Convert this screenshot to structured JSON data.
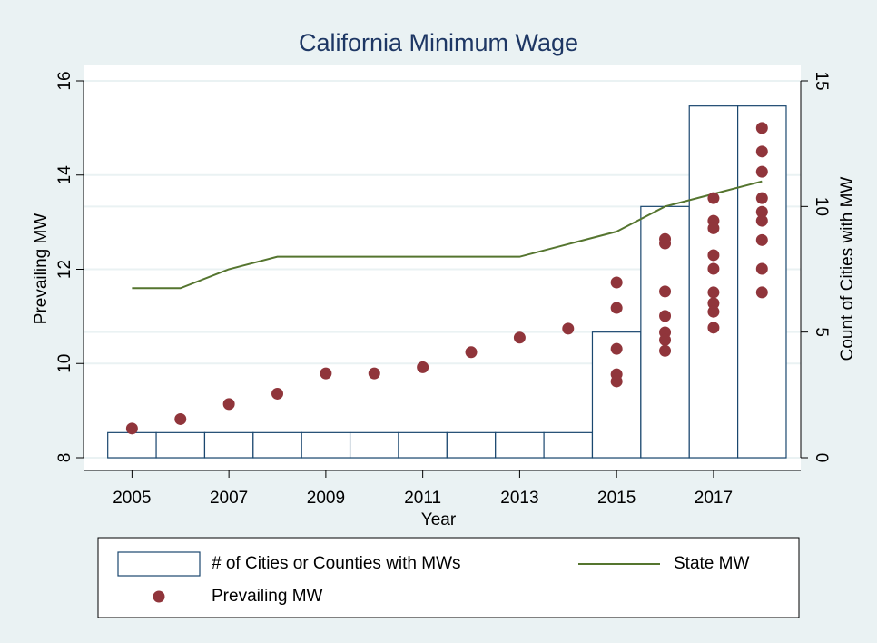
{
  "chart_data": {
    "type": "combo",
    "title": "California Minimum Wage",
    "xlabel": "Year",
    "ylabel": "Prevailing MW",
    "y2label": "Count of Cities with MW",
    "xlim": [
      2004,
      2018.8
    ],
    "xticks": [
      2005,
      2007,
      2009,
      2011,
      2013,
      2015,
      2017
    ],
    "ylim": [
      8,
      16
    ],
    "yticks": [
      8,
      10,
      12,
      14,
      16
    ],
    "y2lim": [
      0,
      15
    ],
    "y2ticks": [
      0,
      5,
      10,
      15
    ],
    "grid": true,
    "series": [
      {
        "name": "# of Cities or Counties with MWs",
        "type": "bar",
        "axis": "y2",
        "color": "#1a476f",
        "x": [
          2005,
          2006,
          2007,
          2008,
          2009,
          2010,
          2011,
          2012,
          2013,
          2014,
          2015,
          2016,
          2017,
          2018
        ],
        "values": [
          1,
          1,
          1,
          1,
          1,
          1,
          1,
          1,
          1,
          1,
          5,
          10,
          14,
          14
        ]
      },
      {
        "name": "State MW",
        "type": "line",
        "axis": "y2",
        "color": "#55752f",
        "x": [
          2005,
          2006,
          2007,
          2008,
          2009,
          2010,
          2011,
          2012,
          2013,
          2014,
          2015,
          2016,
          2017,
          2018
        ],
        "values": [
          6.75,
          6.75,
          7.5,
          8,
          8,
          8,
          8,
          8,
          8,
          8.5,
          9,
          10,
          10.5,
          11
        ]
      },
      {
        "name": "Prevailing MW",
        "type": "scatter",
        "color": "#90353b",
        "x": [
          2005,
          2006,
          2007,
          2008,
          2009,
          2010,
          2011,
          2012,
          2013,
          2014,
          2015,
          2015,
          2015,
          2015,
          2015,
          2016,
          2016,
          2016,
          2016,
          2016,
          2016,
          2016,
          2017,
          2017,
          2017,
          2017,
          2017,
          2017,
          2017,
          2017,
          2017,
          2018,
          2018,
          2018,
          2018,
          2018,
          2018,
          2018,
          2018,
          2018
        ],
        "values": [
          8.62,
          8.82,
          9.14,
          9.36,
          9.79,
          9.79,
          9.92,
          10.24,
          10.55,
          10.74,
          11.72,
          11.18,
          10.31,
          9.77,
          9.62,
          12.64,
          12.55,
          11.53,
          11.01,
          10.66,
          10.5,
          10.27,
          13.51,
          13.03,
          12.87,
          12.3,
          12.01,
          11.51,
          11.28,
          11.1,
          10.76,
          15.0,
          14.5,
          14.07,
          13.51,
          13.22,
          13.03,
          12.62,
          12.01,
          11.51
        ]
      }
    ]
  }
}
